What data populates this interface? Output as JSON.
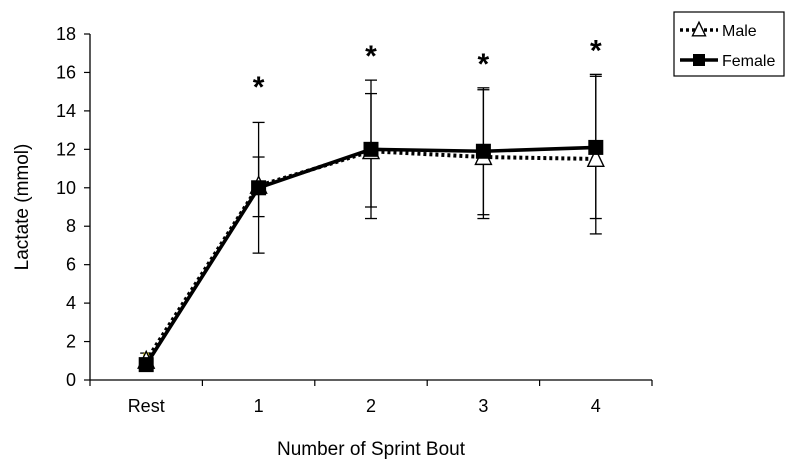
{
  "chart_data": {
    "type": "line",
    "xlabel": "Number of Sprint Bout",
    "ylabel": "Lactate (mmol)",
    "categories": [
      "Rest",
      "1",
      "2",
      "3",
      "4"
    ],
    "ylim": [
      0,
      18
    ],
    "yticks": [
      "0",
      "2",
      "4",
      "6",
      "8",
      "10",
      "12",
      "14",
      "16",
      "18"
    ],
    "grid": false,
    "legend_position": "top-right",
    "significance_marker": "*",
    "significant_categories": [
      "1",
      "2",
      "3",
      "4"
    ],
    "series": [
      {
        "name": "Male",
        "marker": "open-triangle",
        "line_style": "dotted",
        "color": "#000000",
        "values": [
          1.0,
          10.1,
          11.9,
          11.6,
          11.5
        ],
        "error_upper": [
          1.4,
          11.6,
          14.9,
          15.2,
          15.9
        ],
        "error_lower": [
          0.6,
          8.5,
          9.0,
          8.6,
          7.6
        ]
      },
      {
        "name": "Female",
        "marker": "filled-square",
        "line_style": "solid",
        "color": "#000000",
        "values": [
          0.8,
          10.0,
          12.0,
          11.9,
          12.1
        ],
        "error_upper": [
          1.1,
          13.4,
          15.6,
          15.1,
          15.8
        ],
        "error_lower": [
          0.5,
          6.6,
          8.4,
          8.4,
          8.4
        ]
      }
    ],
    "accent_color": "#f0e010"
  }
}
